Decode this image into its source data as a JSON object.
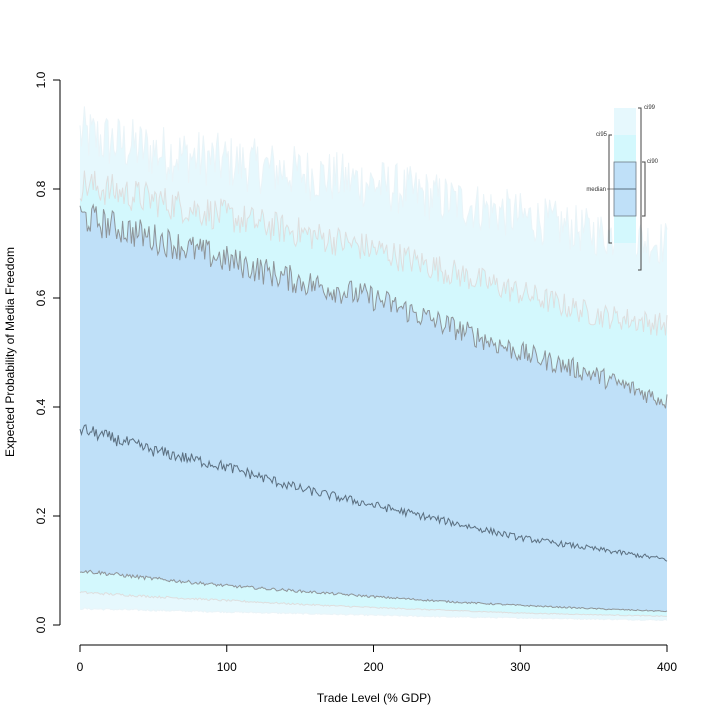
{
  "chart_data": {
    "type": "area",
    "title": "",
    "xlabel": "Trade Level (% GDP)",
    "ylabel": "Expected Probability of Media Freedom",
    "xlim": [
      0,
      400
    ],
    "ylim": [
      0,
      1
    ],
    "x_ticks": [
      0,
      100,
      200,
      300,
      400
    ],
    "x_tick_labels": [
      "0",
      "100",
      "200",
      "300",
      "400"
    ],
    "y_ticks": [
      0,
      0.2,
      0.4,
      0.6,
      0.8,
      1
    ],
    "y_tick_labels": [
      "0.0",
      "0.2",
      "0.4",
      "0.6",
      "0.8",
      "1.0"
    ],
    "grid": false,
    "colors": {
      "ci99": "#e6f8fd",
      "ci95": "#d3f8fd",
      "ci90": "#bfe0f8",
      "median_line": "#5b6f80",
      "ci90_line": "#8e9498",
      "ci95_line": "#dedede",
      "ci99_line": "#eaf4f8"
    },
    "x": [
      0,
      50,
      100,
      150,
      200,
      250,
      300,
      350,
      400
    ],
    "series": [
      {
        "band": "ci99",
        "lower": [
          0.03,
          0.027,
          0.024,
          0.021,
          0.018,
          0.015,
          0.013,
          0.011,
          0.009
        ],
        "upper": [
          0.9,
          0.87,
          0.85,
          0.83,
          0.81,
          0.78,
          0.75,
          0.72,
          0.7
        ]
      },
      {
        "band": "ci95",
        "lower": [
          0.06,
          0.052,
          0.045,
          0.038,
          0.032,
          0.027,
          0.022,
          0.019,
          0.016
        ],
        "upper": [
          0.81,
          0.78,
          0.75,
          0.72,
          0.69,
          0.65,
          0.61,
          0.57,
          0.55
        ]
      },
      {
        "band": "ci90",
        "lower": [
          0.1,
          0.085,
          0.072,
          0.062,
          0.052,
          0.043,
          0.036,
          0.03,
          0.025
        ],
        "upper": [
          0.75,
          0.71,
          0.67,
          0.63,
          0.6,
          0.55,
          0.5,
          0.46,
          0.41
        ]
      },
      {
        "band": "median",
        "values": [
          0.36,
          0.32,
          0.29,
          0.25,
          0.22,
          0.19,
          0.16,
          0.14,
          0.12
        ]
      }
    ],
    "legend": {
      "position": "top-right",
      "labels": {
        "ci99": "ci99",
        "ci95": "ci95",
        "ci90": "ci90",
        "median": "median"
      }
    }
  }
}
